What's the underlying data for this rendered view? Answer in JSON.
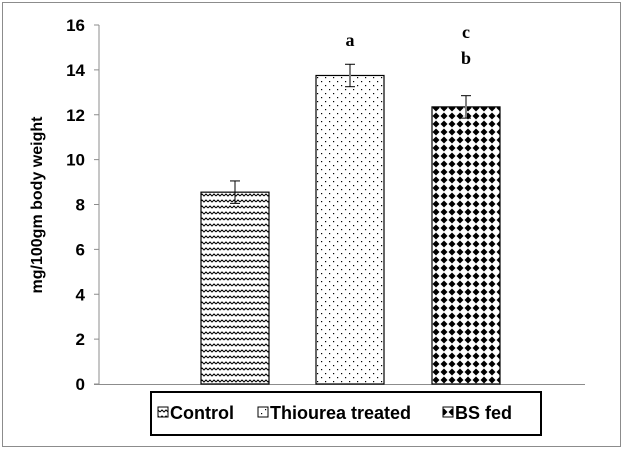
{
  "chart_data": {
    "type": "bar",
    "title": "",
    "xlabel": "",
    "ylabel": "mg/100gm body weight",
    "ylim": [
      0,
      16
    ],
    "yticks": [
      0,
      2,
      4,
      6,
      8,
      10,
      12,
      14,
      16
    ],
    "grid": false,
    "categories": [
      "Control",
      "Thiourea treated",
      "BS fed"
    ],
    "values": [
      8.55,
      13.75,
      12.35
    ],
    "errors": [
      0.5,
      0.5,
      0.5
    ],
    "annotations": [
      {
        "category": "Thiourea treated",
        "labels": [
          "a"
        ]
      },
      {
        "category": "BS fed",
        "labels": [
          "c",
          "b"
        ]
      }
    ],
    "patterns": [
      "zigzag",
      "dots",
      "diamonds"
    ],
    "legend": {
      "position": "bottom",
      "entries": [
        "Control",
        "Thiourea treated",
        "BS fed"
      ]
    },
    "colors": {
      "axis": "#8c8c8c",
      "bar_outline": "#000000",
      "error_bar": "#808080"
    }
  }
}
